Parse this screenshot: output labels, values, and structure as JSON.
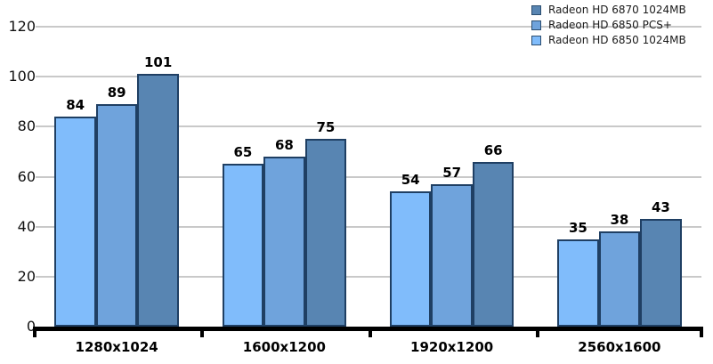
{
  "chart_data": {
    "type": "bar",
    "categories": [
      "1280x1024",
      "1600x1200",
      "1920x1200",
      "2560x1600"
    ],
    "series": [
      {
        "name": "Radeon HD 6850 1024MB",
        "color": "#80bcfb",
        "values": [
          84,
          65,
          54,
          35
        ]
      },
      {
        "name": "Radeon HD 6850 PCS+",
        "color": "#6fa3dc",
        "values": [
          89,
          68,
          57,
          38
        ]
      },
      {
        "name": "Radeon HD 6870 1024MB",
        "color": "#5885b2",
        "values": [
          101,
          75,
          66,
          43
        ]
      }
    ],
    "legend": {
      "position": "top-right",
      "items": [
        "Radeon HD 6870 1024MB",
        "Radeon HD 6850 PCS+",
        "Radeon HD 6850 1024MB"
      ]
    },
    "y_ticks": [
      0,
      20,
      40,
      60,
      80,
      100,
      120
    ],
    "ylim": [
      0,
      120
    ],
    "grid": true,
    "value_labels": true,
    "title": "",
    "xlabel": "",
    "ylabel": ""
  },
  "colors": {
    "bar_border": "#1f3f63",
    "gridline": "#c9c9c9",
    "axis": "#000000",
    "background": "#ffffff"
  }
}
